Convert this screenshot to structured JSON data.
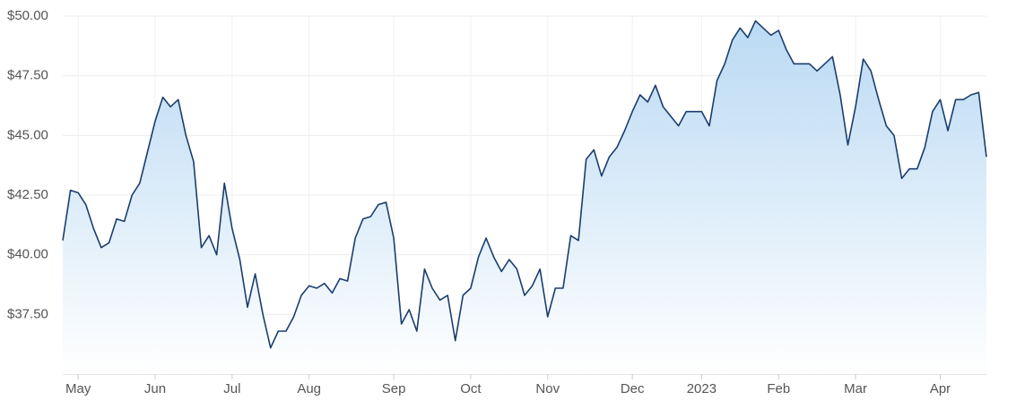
{
  "chart_data": {
    "type": "line",
    "categories": [
      null,
      null,
      "May",
      null,
      null,
      null,
      null,
      null,
      null,
      null,
      null,
      null,
      "Jun",
      null,
      null,
      null,
      null,
      null,
      null,
      null,
      null,
      null,
      "Jul",
      null,
      null,
      null,
      null,
      null,
      null,
      null,
      null,
      null,
      "Aug",
      null,
      null,
      null,
      null,
      null,
      null,
      null,
      null,
      null,
      null,
      "Sep",
      null,
      null,
      null,
      null,
      null,
      null,
      null,
      null,
      null,
      "Oct",
      null,
      null,
      null,
      null,
      null,
      null,
      null,
      null,
      null,
      "Nov",
      null,
      null,
      null,
      null,
      null,
      null,
      null,
      null,
      null,
      null,
      "Dec",
      null,
      null,
      null,
      null,
      null,
      null,
      null,
      null,
      "2023",
      null,
      null,
      null,
      null,
      null,
      null,
      null,
      null,
      null,
      "Feb",
      null,
      null,
      null,
      null,
      null,
      null,
      null,
      null,
      null,
      "Mar",
      null,
      null,
      null,
      null,
      null,
      null,
      null,
      null,
      null,
      null,
      "Apr",
      null,
      null,
      null,
      null,
      null,
      null
    ],
    "values": [
      40.6,
      42.7,
      42.6,
      42.1,
      41.1,
      40.3,
      40.5,
      41.5,
      41.4,
      42.5,
      43.0,
      44.3,
      45.6,
      46.6,
      46.2,
      46.5,
      45.0,
      43.9,
      40.3,
      40.8,
      40.0,
      43.0,
      41.1,
      39.8,
      37.8,
      39.2,
      37.5,
      36.1,
      36.8,
      36.8,
      37.4,
      38.3,
      38.7,
      38.6,
      38.8,
      38.4,
      39.0,
      38.9,
      40.7,
      41.5,
      41.6,
      42.1,
      42.2,
      40.7,
      37.1,
      37.7,
      36.8,
      39.4,
      38.6,
      38.1,
      38.3,
      36.4,
      38.3,
      38.6,
      39.9,
      40.7,
      39.9,
      39.3,
      39.8,
      39.4,
      38.3,
      38.7,
      39.4,
      37.4,
      38.6,
      38.6,
      40.8,
      40.6,
      44.0,
      44.4,
      43.3,
      44.1,
      44.5,
      45.2,
      46.0,
      46.7,
      46.4,
      47.1,
      46.2,
      45.8,
      45.4,
      46.0,
      46.0,
      46.0,
      45.4,
      47.3,
      48.0,
      49.0,
      49.5,
      49.1,
      49.8,
      49.5,
      49.2,
      49.4,
      48.6,
      48.0,
      48.0,
      48.0,
      47.7,
      48.0,
      48.3,
      46.7,
      44.6,
      46.2,
      48.2,
      47.7,
      46.5,
      45.4,
      45.0,
      43.2,
      43.6,
      43.6,
      44.5,
      46.0,
      46.5,
      45.2,
      46.5,
      46.5,
      46.7,
      46.8,
      44.1
    ],
    "color": "#1b3d6e",
    "fill_color": "#b7d8f3",
    "ylim": [
      35,
      50
    ],
    "yticks": [
      {
        "value": 37.5,
        "label": "$37.50"
      },
      {
        "value": 40,
        "label": "$40.00"
      },
      {
        "value": 42.5,
        "label": "$42.50"
      },
      {
        "value": 45,
        "label": "$45.00"
      },
      {
        "value": 47.5,
        "label": "$47.50"
      },
      {
        "value": 50,
        "label": "$50.00"
      }
    ],
    "grid": true
  }
}
